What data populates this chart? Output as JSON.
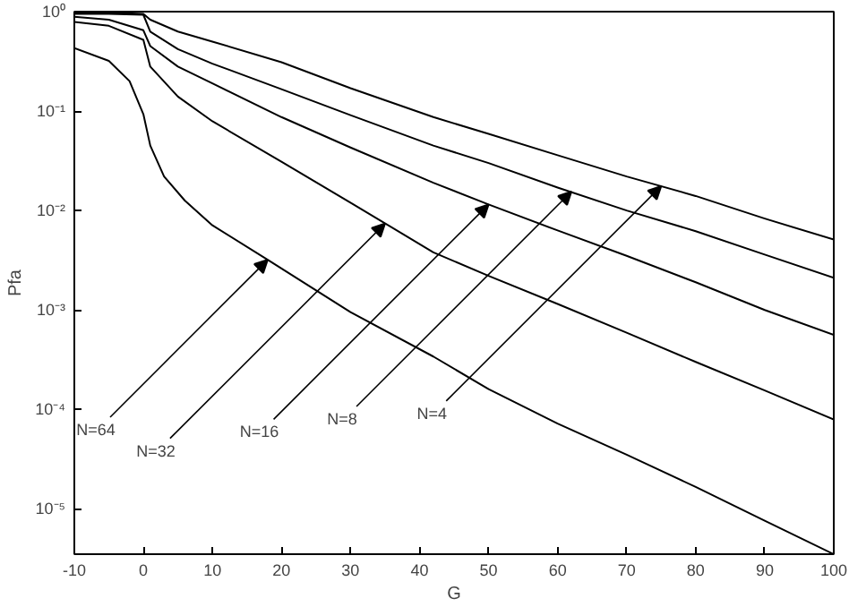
{
  "chart_data": {
    "type": "line",
    "xlabel": "G",
    "ylabel": "Pfa",
    "log": "y",
    "grid": false,
    "marker": "none",
    "line_style": "solid",
    "xlim": [
      -10,
      100
    ],
    "xticks": [
      -10,
      0,
      10,
      20,
      30,
      40,
      50,
      60,
      70,
      80,
      90,
      100
    ],
    "ylim": [
      3.5e-06,
      1
    ],
    "yticks": [
      {
        "value": 1,
        "label": "10⁰"
      },
      {
        "value": 0.1,
        "label": "10⁻¹"
      },
      {
        "value": 0.01,
        "label": "10⁻²"
      },
      {
        "value": 0.001,
        "label": "10⁻³"
      },
      {
        "value": 0.0001,
        "label": "10⁻⁴"
      },
      {
        "value": 1e-05,
        "label": "10⁻⁵"
      }
    ],
    "series": [
      {
        "color": "#000000",
        "x": [
          -10,
          -5,
          -2,
          0,
          1,
          3,
          6,
          10,
          18,
          30,
          42,
          50,
          60,
          70,
          80,
          90,
          100
        ],
        "values": [
          0.43,
          0.32,
          0.2,
          0.093,
          0.045,
          0.022,
          0.0126,
          0.0071,
          0.0032,
          0.00095,
          0.00034,
          0.00016,
          7.2e-05,
          3.5e-05,
          1.66e-05,
          7.6e-06,
          3.5e-06
        ]
      },
      {
        "color": "#000000",
        "x": [
          -10,
          -5,
          0,
          1,
          5,
          10,
          20,
          30,
          42,
          50,
          60,
          70,
          80,
          90,
          100
        ],
        "values": [
          0.79,
          0.72,
          0.52,
          0.28,
          0.14,
          0.079,
          0.031,
          0.012,
          0.0038,
          0.0022,
          0.00115,
          0.00059,
          0.0003,
          0.000155,
          7.9e-05
        ]
      },
      {
        "color": "#000000",
        "x": [
          -10,
          -5,
          0,
          1,
          5,
          10,
          20,
          30,
          42,
          50,
          60,
          70,
          80,
          90,
          100
        ],
        "values": [
          0.89,
          0.83,
          0.65,
          0.45,
          0.28,
          0.19,
          0.087,
          0.043,
          0.019,
          0.0115,
          0.0063,
          0.0035,
          0.0019,
          0.001,
          0.00056
        ]
      },
      {
        "color": "#000000",
        "x": [
          -10,
          -5,
          0,
          1,
          5,
          10,
          20,
          30,
          42,
          50,
          60,
          70,
          80,
          90,
          100
        ],
        "values": [
          0.95,
          0.95,
          0.93,
          0.63,
          0.42,
          0.3,
          0.166,
          0.091,
          0.045,
          0.03,
          0.017,
          0.01,
          0.0062,
          0.0036,
          0.0021
        ]
      },
      {
        "color": "#000000",
        "x": [
          -10,
          -5,
          0,
          1,
          5,
          10,
          20,
          30,
          42,
          50,
          60,
          70,
          80,
          90,
          100
        ],
        "values": [
          0.98,
          0.98,
          0.95,
          0.83,
          0.63,
          0.5,
          0.31,
          0.17,
          0.087,
          0.059,
          0.036,
          0.022,
          0.014,
          0.0083,
          0.0051
        ]
      }
    ],
    "annotations": [
      {
        "text": "N=64",
        "x": 18,
        "y": 0.0032
      },
      {
        "text": "N=32",
        "x": 35,
        "y": 0.0074
      },
      {
        "text": "N=16",
        "x": 50,
        "y": 0.0115
      },
      {
        "text": "N=8",
        "x": 62,
        "y": 0.0155
      },
      {
        "text": "N=4",
        "x": 75,
        "y": 0.0176
      }
    ]
  }
}
